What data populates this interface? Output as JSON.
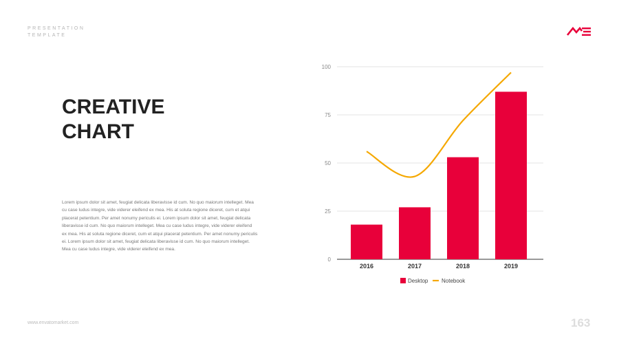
{
  "header": {
    "tag_line1": "PRESENTATION",
    "tag_line2": "TEMPLATE",
    "logo_text": "ME"
  },
  "title_line1": "CREATIVE",
  "title_line2": "CHART",
  "body_text": "Lorem ipsum dolor sit amet, feugiat delicata liberavisse id cum. No quo maiorum intelleget. Mea cu case ludus integre, vide viderer eleifend ex mea. His at soluta regione diceret, cum et atqui placerat petentium. Per amet nonumy periculis ei. Lorem ipsum dolor sit amet, feugiat delicata liberavisse id cum. No quo maiorum intelleget. Mea cu case ludus integre, vide viderer eleifend ex mea. His at soluta regione diceret, cum et atqui placerat petentium. Per amet nonumy periculis ei. Lorem ipsum dolor sit amet, feugiat delicata liberavisse id cum. No quo maiorum intelleget. Mea cu case ludus integre, vide viderer eleifend ex mea.",
  "footer": {
    "website": "www.envatomarket.com",
    "page_number": "163"
  },
  "colors": {
    "desktop": "#e8003a",
    "notebook": "#f5a800",
    "accent": "#e8003a"
  },
  "chart_data": {
    "type": "bar",
    "categories": [
      "2016",
      "2017",
      "2018",
      "2019"
    ],
    "series": [
      {
        "name": "Desktop",
        "type": "bar",
        "values": [
          18,
          27,
          53,
          87
        ]
      },
      {
        "name": "Notebook",
        "type": "line",
        "values": [
          56,
          43,
          72,
          97
        ]
      }
    ],
    "ylim": [
      0,
      100
    ],
    "yticks": [
      0,
      25,
      50,
      75,
      100
    ],
    "grid": true,
    "legend": "bottom"
  }
}
